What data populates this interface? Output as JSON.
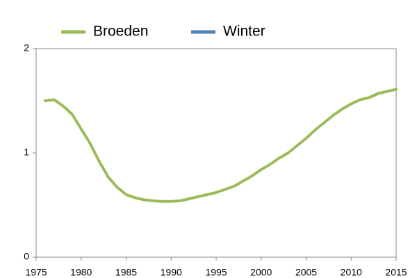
{
  "chart_data": {
    "type": "line",
    "x": [
      1976,
      1977,
      1978,
      1979,
      1980,
      1981,
      1982,
      1983,
      1984,
      1985,
      1986,
      1987,
      1988,
      1989,
      1990,
      1991,
      1992,
      1993,
      1994,
      1995,
      1996,
      1997,
      1998,
      1999,
      2000,
      2001,
      2002,
      2003,
      2004,
      2005,
      2006,
      2007,
      2008,
      2009,
      2010,
      2011,
      2012,
      2013,
      2014,
      2015
    ],
    "series": [
      {
        "name": "Broeden",
        "color": "#9bbb59",
        "values": [
          1.5,
          1.51,
          1.45,
          1.37,
          1.23,
          1.09,
          0.92,
          0.77,
          0.67,
          0.6,
          0.57,
          0.55,
          0.54,
          0.535,
          0.535,
          0.54,
          0.56,
          0.58,
          0.6,
          0.62,
          0.65,
          0.68,
          0.73,
          0.78,
          0.84,
          0.89,
          0.95,
          1.0,
          1.07,
          1.14,
          1.22,
          1.29,
          1.36,
          1.42,
          1.47,
          1.51,
          1.53,
          1.57,
          1.59,
          1.61
        ]
      },
      {
        "name": "Winter",
        "color": "#4f81bd",
        "values": [
          null,
          null,
          null,
          null,
          null,
          null,
          null,
          null,
          null,
          null,
          null,
          null,
          null,
          null,
          null,
          null,
          null,
          null,
          null,
          null,
          null,
          null,
          null,
          null,
          null,
          null,
          null,
          null,
          null,
          null,
          null,
          null,
          null,
          null,
          null,
          null,
          null,
          null,
          null,
          null
        ]
      }
    ],
    "xlim": [
      1975,
      2015
    ],
    "xticks": [
      1975,
      1980,
      1985,
      1990,
      1995,
      2000,
      2005,
      2010,
      2015
    ],
    "ylim": [
      0,
      2
    ],
    "yticks": [
      0,
      1,
      2
    ],
    "grid": false,
    "legend": "top"
  }
}
